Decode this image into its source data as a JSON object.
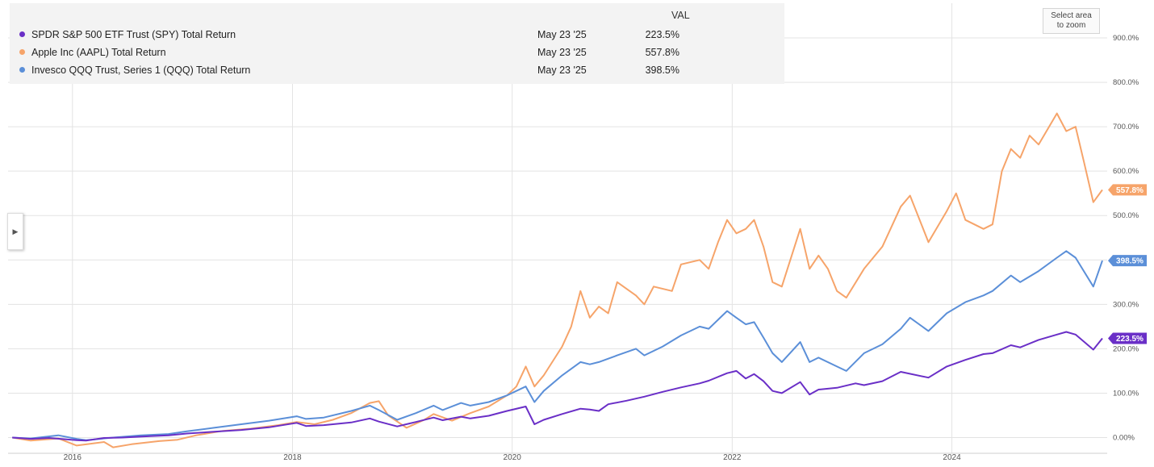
{
  "legend": {
    "header": "VAL",
    "rows": [
      {
        "name": "SPDR S&P 500 ETF Trust (SPY) Total Return",
        "date": "May 23 '25",
        "value": "223.5%",
        "color": "#6a2fc7"
      },
      {
        "name": "Apple Inc (AAPL) Total Return",
        "date": "May 23 '25",
        "value": "557.8%",
        "color": "#f6a46a"
      },
      {
        "name": "Invesco QQQ Trust, Series 1 (QQQ) Total Return",
        "date": "May 23 '25",
        "value": "398.5%",
        "color": "#5b8fd8"
      }
    ]
  },
  "zoom_button": {
    "line1": "Select area",
    "line2": "to zoom"
  },
  "toggle_icon": "chevron-right-icon",
  "chart_data": {
    "type": "line",
    "y_unit": "%",
    "ylim": [
      -10,
      960
    ],
    "xlim": [
      "2015-06-01",
      "2025-05-31"
    ],
    "y_ticks": [
      "0.00%",
      "100.0%",
      "200.0%",
      "300.0%",
      "400.0%",
      "500.0%",
      "600.0%",
      "700.0%",
      "800.0%",
      "900.0%"
    ],
    "x_ticks": [
      "2016",
      "2018",
      "2020",
      "2022",
      "2024"
    ],
    "grid": true,
    "legend_position": "top-left",
    "series": [
      {
        "name": "SPDR S&P 500 ETF Trust (SPY) Total Return",
        "color": "#6a2fc7",
        "end_label": "223.5%",
        "points": [
          [
            "2015-06",
            0
          ],
          [
            "2015-08",
            -3
          ],
          [
            "2015-10",
            -1
          ],
          [
            "2016-01",
            -6
          ],
          [
            "2016-02",
            -7
          ],
          [
            "2016-04",
            -1
          ],
          [
            "2016-06",
            0
          ],
          [
            "2016-09",
            3
          ],
          [
            "2016-11",
            5
          ],
          [
            "2017-01",
            9
          ],
          [
            "2017-04",
            13
          ],
          [
            "2017-07",
            17
          ],
          [
            "2017-10",
            23
          ],
          [
            "2018-01",
            33
          ],
          [
            "2018-02",
            26
          ],
          [
            "2018-04",
            28
          ],
          [
            "2018-07",
            34
          ],
          [
            "2018-09",
            43
          ],
          [
            "2018-10",
            36
          ],
          [
            "2018-12",
            25
          ],
          [
            "2019-02",
            35
          ],
          [
            "2019-04",
            45
          ],
          [
            "2019-05",
            39
          ],
          [
            "2019-07",
            47
          ],
          [
            "2019-08",
            43
          ],
          [
            "2019-10",
            49
          ],
          [
            "2019-12",
            60
          ],
          [
            "2020-02",
            70
          ],
          [
            "2020-03",
            30
          ],
          [
            "2020-04",
            40
          ],
          [
            "2020-06",
            53
          ],
          [
            "2020-08",
            65
          ],
          [
            "2020-09",
            63
          ],
          [
            "2020-10",
            60
          ],
          [
            "2020-11",
            75
          ],
          [
            "2021-01",
            83
          ],
          [
            "2021-03",
            92
          ],
          [
            "2021-05",
            103
          ],
          [
            "2021-07",
            113
          ],
          [
            "2021-09",
            122
          ],
          [
            "2021-10",
            128
          ],
          [
            "2021-12",
            145
          ],
          [
            "2022-01",
            150
          ],
          [
            "2022-02",
            133
          ],
          [
            "2022-03",
            143
          ],
          [
            "2022-04",
            127
          ],
          [
            "2022-05",
            105
          ],
          [
            "2022-06",
            100
          ],
          [
            "2022-08",
            125
          ],
          [
            "2022-09",
            97
          ],
          [
            "2022-10",
            108
          ],
          [
            "2022-12",
            112
          ],
          [
            "2023-02",
            122
          ],
          [
            "2023-03",
            118
          ],
          [
            "2023-05",
            127
          ],
          [
            "2023-07",
            148
          ],
          [
            "2023-10",
            135
          ],
          [
            "2023-12",
            160
          ],
          [
            "2024-02",
            175
          ],
          [
            "2024-04",
            188
          ],
          [
            "2024-05",
            190
          ],
          [
            "2024-07",
            208
          ],
          [
            "2024-08",
            203
          ],
          [
            "2024-10",
            220
          ],
          [
            "2024-12",
            232
          ],
          [
            "2025-01",
            238
          ],
          [
            "2025-02",
            232
          ],
          [
            "2025-04",
            198
          ],
          [
            "2025-05",
            223.5
          ]
        ]
      },
      {
        "name": "Apple Inc (AAPL) Total Return",
        "color": "#f6a46a",
        "end_label": "557.8%",
        "points": [
          [
            "2015-06",
            0
          ],
          [
            "2015-08",
            -7
          ],
          [
            "2015-11",
            -2
          ],
          [
            "2016-01",
            -18
          ],
          [
            "2016-04",
            -10
          ],
          [
            "2016-05",
            -22
          ],
          [
            "2016-07",
            -15
          ],
          [
            "2016-10",
            -8
          ],
          [
            "2016-12",
            -5
          ],
          [
            "2017-02",
            5
          ],
          [
            "2017-05",
            15
          ],
          [
            "2017-08",
            20
          ],
          [
            "2017-11",
            28
          ],
          [
            "2018-01",
            35
          ],
          [
            "2018-03",
            30
          ],
          [
            "2018-05",
            40
          ],
          [
            "2018-07",
            55
          ],
          [
            "2018-09",
            78
          ],
          [
            "2018-10",
            82
          ],
          [
            "2018-11",
            50
          ],
          [
            "2019-01",
            22
          ],
          [
            "2019-03",
            40
          ],
          [
            "2019-04",
            53
          ],
          [
            "2019-06",
            38
          ],
          [
            "2019-08",
            55
          ],
          [
            "2019-10",
            70
          ],
          [
            "2019-12",
            95
          ],
          [
            "2020-01",
            115
          ],
          [
            "2020-02",
            160
          ],
          [
            "2020-03",
            115
          ],
          [
            "2020-04",
            140
          ],
          [
            "2020-06",
            205
          ],
          [
            "2020-07",
            250
          ],
          [
            "2020-08",
            330
          ],
          [
            "2020-09",
            270
          ],
          [
            "2020-10",
            295
          ],
          [
            "2020-11",
            280
          ],
          [
            "2020-12",
            350
          ],
          [
            "2021-02",
            320
          ],
          [
            "2021-03",
            300
          ],
          [
            "2021-04",
            340
          ],
          [
            "2021-06",
            330
          ],
          [
            "2021-07",
            390
          ],
          [
            "2021-09",
            400
          ],
          [
            "2021-10",
            380
          ],
          [
            "2021-11",
            440
          ],
          [
            "2021-12",
            490
          ],
          [
            "2022-01",
            460
          ],
          [
            "2022-02",
            470
          ],
          [
            "2022-03",
            490
          ],
          [
            "2022-04",
            430
          ],
          [
            "2022-05",
            350
          ],
          [
            "2022-06",
            340
          ],
          [
            "2022-08",
            470
          ],
          [
            "2022-09",
            380
          ],
          [
            "2022-10",
            410
          ],
          [
            "2022-11",
            380
          ],
          [
            "2022-12",
            330
          ],
          [
            "2023-01",
            315
          ],
          [
            "2023-03",
            380
          ],
          [
            "2023-05",
            430
          ],
          [
            "2023-07",
            520
          ],
          [
            "2023-08",
            545
          ],
          [
            "2023-10",
            440
          ],
          [
            "2023-12",
            510
          ],
          [
            "2024-01",
            550
          ],
          [
            "2024-02",
            490
          ],
          [
            "2024-04",
            470
          ],
          [
            "2024-05",
            480
          ],
          [
            "2024-06",
            600
          ],
          [
            "2024-07",
            650
          ],
          [
            "2024-08",
            630
          ],
          [
            "2024-09",
            680
          ],
          [
            "2024-10",
            660
          ],
          [
            "2024-12",
            730
          ],
          [
            "2025-01",
            690
          ],
          [
            "2025-02",
            700
          ],
          [
            "2025-03",
            620
          ],
          [
            "2025-04",
            530
          ],
          [
            "2025-05",
            557.8
          ]
        ]
      },
      {
        "name": "Invesco QQQ Trust, Series 1 (QQQ) Total Return",
        "color": "#5b8fd8",
        "end_label": "398.5%",
        "points": [
          [
            "2015-06",
            0
          ],
          [
            "2015-08",
            -2
          ],
          [
            "2015-11",
            5
          ],
          [
            "2016-01",
            -3
          ],
          [
            "2016-02",
            -6
          ],
          [
            "2016-05",
            0
          ],
          [
            "2016-08",
            5
          ],
          [
            "2016-11",
            8
          ],
          [
            "2017-01",
            14
          ],
          [
            "2017-04",
            22
          ],
          [
            "2017-07",
            30
          ],
          [
            "2017-10",
            38
          ],
          [
            "2018-01",
            48
          ],
          [
            "2018-02",
            42
          ],
          [
            "2018-04",
            45
          ],
          [
            "2018-07",
            60
          ],
          [
            "2018-09",
            72
          ],
          [
            "2018-10",
            62
          ],
          [
            "2018-12",
            40
          ],
          [
            "2019-02",
            55
          ],
          [
            "2019-04",
            72
          ],
          [
            "2019-05",
            62
          ],
          [
            "2019-07",
            78
          ],
          [
            "2019-08",
            72
          ],
          [
            "2019-10",
            80
          ],
          [
            "2019-12",
            95
          ],
          [
            "2020-02",
            115
          ],
          [
            "2020-03",
            80
          ],
          [
            "2020-04",
            105
          ],
          [
            "2020-06",
            140
          ],
          [
            "2020-08",
            170
          ],
          [
            "2020-09",
            165
          ],
          [
            "2020-10",
            170
          ],
          [
            "2020-12",
            185
          ],
          [
            "2021-02",
            200
          ],
          [
            "2021-03",
            185
          ],
          [
            "2021-05",
            205
          ],
          [
            "2021-07",
            230
          ],
          [
            "2021-09",
            250
          ],
          [
            "2021-10",
            245
          ],
          [
            "2021-12",
            285
          ],
          [
            "2022-01",
            270
          ],
          [
            "2022-02",
            255
          ],
          [
            "2022-03",
            260
          ],
          [
            "2022-04",
            225
          ],
          [
            "2022-05",
            190
          ],
          [
            "2022-06",
            170
          ],
          [
            "2022-08",
            215
          ],
          [
            "2022-09",
            170
          ],
          [
            "2022-10",
            180
          ],
          [
            "2022-12",
            160
          ],
          [
            "2023-01",
            150
          ],
          [
            "2023-03",
            190
          ],
          [
            "2023-05",
            210
          ],
          [
            "2023-07",
            245
          ],
          [
            "2023-08",
            270
          ],
          [
            "2023-10",
            240
          ],
          [
            "2023-12",
            280
          ],
          [
            "2024-02",
            305
          ],
          [
            "2024-04",
            320
          ],
          [
            "2024-05",
            330
          ],
          [
            "2024-07",
            365
          ],
          [
            "2024-08",
            350
          ],
          [
            "2024-10",
            375
          ],
          [
            "2024-12",
            405
          ],
          [
            "2025-01",
            420
          ],
          [
            "2025-02",
            405
          ],
          [
            "2025-04",
            340
          ],
          [
            "2025-05",
            398.5
          ]
        ]
      }
    ]
  }
}
